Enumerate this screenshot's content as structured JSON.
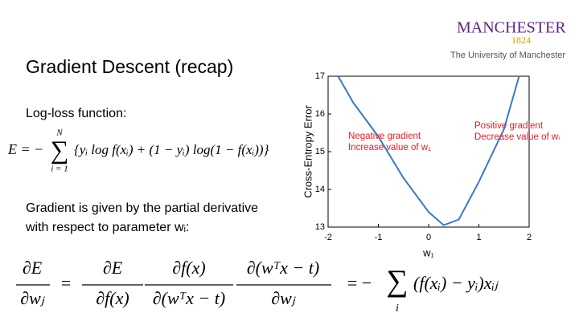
{
  "logo": {
    "name": "MANCHESTER",
    "year": "1824",
    "subtitle": "The University of Manchester"
  },
  "title": "Gradient Descent (recap)",
  "loss_label": "Log-loss function:",
  "loss_formula": {
    "lhs": "E = −",
    "sum": "∑",
    "sum_top": "N",
    "sum_bottom": "i = 1",
    "rhs": "{yᵢ log f(xᵢ) + (1 − yᵢ) log(1 − f(xᵢ))}"
  },
  "gradient_text": [
    "Gradient is given by the partial derivative",
    "with respect to parameter wᵢ:"
  ],
  "gradient_formula": {
    "fractions": [
      {
        "num": "∂E",
        "den": "∂wⱼ"
      },
      {
        "num": "∂E",
        "den": "∂f(x)"
      },
      {
        "num": "∂f(x)",
        "den": "∂(wᵀx − t)"
      },
      {
        "num": "∂(wᵀx − t)",
        "den": "∂wⱼ"
      }
    ],
    "equals": "=",
    "equals_minus": "= −",
    "sum": "∑",
    "sum_bottom": "i",
    "rhs": "(f(xᵢ) − yᵢ)xᵢⱼ"
  },
  "chart_data": {
    "type": "line",
    "x_label": "w₁",
    "y_label": "Cross-Entropy Error",
    "x": [
      -1.8,
      -1.5,
      -1,
      -0.5,
      0,
      0.3,
      0.6,
      1,
      1.5,
      1.8
    ],
    "series": [
      {
        "color": "#3b78c4",
        "values": [
          17,
          16.3,
          15.4,
          14.3,
          13.4,
          13.05,
          13.2,
          14.2,
          15.6,
          17
        ]
      }
    ],
    "xlim": [
      -2,
      2
    ],
    "xticks": [
      -2,
      -1,
      0,
      1,
      2
    ],
    "ylim": [
      13,
      17
    ],
    "yticks": [
      13,
      14,
      15,
      16,
      17
    ],
    "annotations": [
      {
        "lines": [
          "Negative gradient",
          "Increase value of w₁"
        ],
        "color": "#e0202a"
      },
      {
        "lines": [
          "Positive gradient",
          "Decrease value of wᵢ"
        ],
        "color": "#e0202a"
      }
    ]
  }
}
